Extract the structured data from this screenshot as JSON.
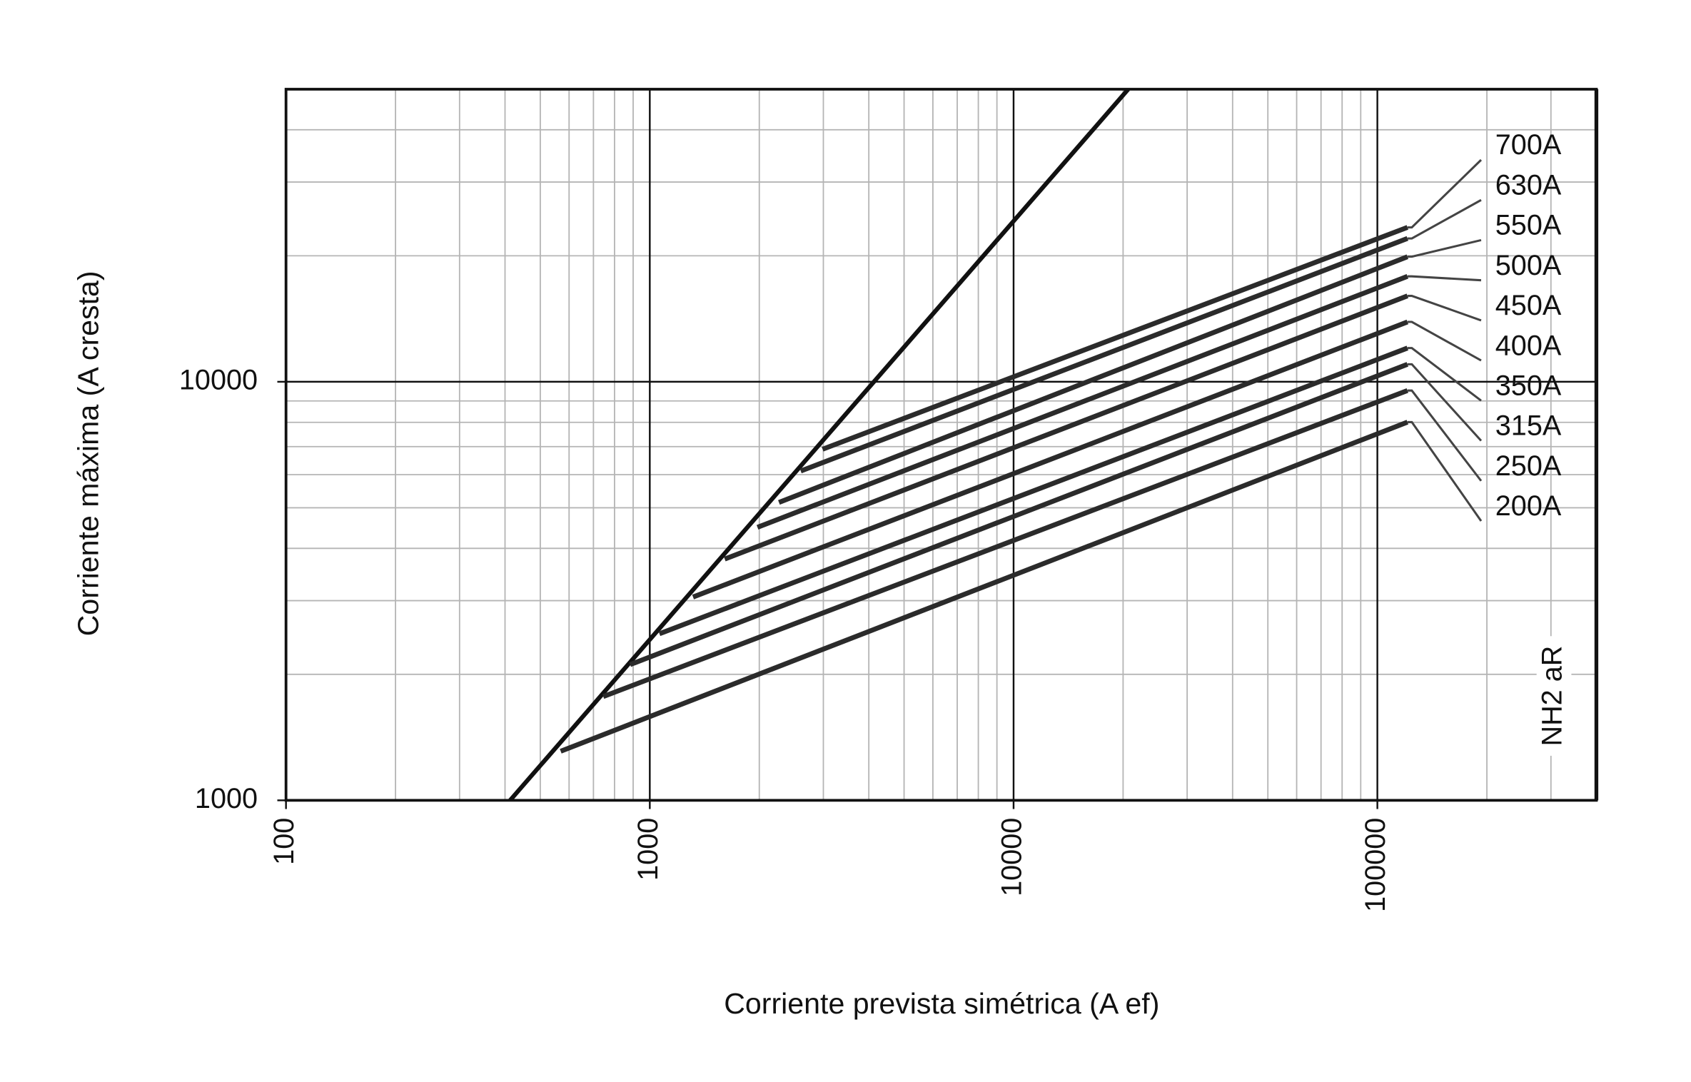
{
  "chart_data": {
    "type": "line",
    "x_label": "Corriente prevista simétrica (A ef)",
    "y_label": "Corriente máxima (A cresta)",
    "annotation": "NH2 aR",
    "log_x": true,
    "log_y": true,
    "xlim": [
      100,
      400000
    ],
    "ylim": [
      1000,
      50000
    ],
    "xticks": [
      100,
      1000,
      10000,
      100000
    ],
    "yticks": [
      1000,
      10000
    ],
    "grid": true,
    "minor_grid": true,
    "reference_line": {
      "color": "#111111",
      "x": [
        413,
        20660
      ],
      "values": [
        1000,
        50000
      ]
    },
    "series": [
      {
        "name": "700A",
        "color": "#2b2b2b",
        "x": [
          2985,
          121000
        ],
        "values": [
          6900,
          23380
        ]
      },
      {
        "name": "630A",
        "color": "#2b2b2b",
        "x": [
          2600,
          121000
        ],
        "values": [
          6120,
          22000
        ]
      },
      {
        "name": "550A",
        "color": "#2b2b2b",
        "x": [
          2265,
          121000
        ],
        "values": [
          5150,
          19900
        ]
      },
      {
        "name": "500A",
        "color": "#2b2b2b",
        "x": [
          1977,
          121000
        ],
        "values": [
          4490,
          17860
        ]
      },
      {
        "name": "450A",
        "color": "#2b2b2b",
        "x": [
          1607,
          121000
        ],
        "values": [
          3770,
          16040
        ]
      },
      {
        "name": "400A",
        "color": "#2b2b2b",
        "x": [
          1315,
          121000
        ],
        "values": [
          3060,
          13900
        ]
      },
      {
        "name": "350A",
        "color": "#2b2b2b",
        "x": [
          1063,
          121000
        ],
        "values": [
          2500,
          12040
        ]
      },
      {
        "name": "315A",
        "color": "#2b2b2b",
        "x": [
          883,
          121000
        ],
        "values": [
          2110,
          11010
        ]
      },
      {
        "name": "250A",
        "color": "#2b2b2b",
        "x": [
          745,
          121000
        ],
        "values": [
          1770,
          9530
        ]
      },
      {
        "name": "200A",
        "color": "#2b2b2b",
        "x": [
          569,
          121000
        ],
        "values": [
          1310,
          8010
        ]
      }
    ]
  }
}
